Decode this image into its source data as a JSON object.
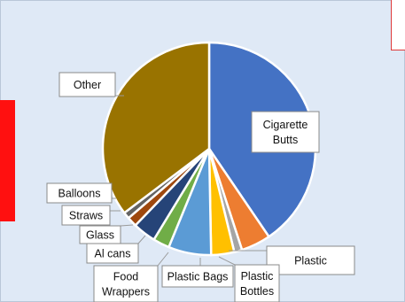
{
  "chart_data": {
    "type": "pie",
    "title": "",
    "categories": [
      "Cigarette Butts",
      "Plastic",
      "Plastic Bottles",
      "Plastic Bags",
      "Food Wrappers",
      "Al cans",
      "Glass",
      "Straws",
      "Balloons",
      "Other"
    ],
    "values": [
      40.5,
      4.5,
      1.2,
      3.5,
      6.5,
      2.5,
      3.5,
      1.5,
      1.0,
      35.3
    ],
    "colors": [
      "#4472c4",
      "#ed7d31",
      "#a5a5a5",
      "#ffc000",
      "#5b9bd5",
      "#70ad47",
      "#264478",
      "#9e480e",
      "#636363",
      "#997300"
    ],
    "labels": [
      [
        "Cigarette",
        "Butts"
      ],
      [
        "Plastic"
      ],
      [
        "Plastic",
        "Bottles"
      ],
      [
        "Plastic Bags"
      ],
      [
        "Food",
        "Wrappers"
      ],
      [
        "Al cans"
      ],
      [
        "Glass"
      ],
      [
        "Straws"
      ],
      [
        "Balloons"
      ],
      [
        "Other"
      ]
    ]
  }
}
